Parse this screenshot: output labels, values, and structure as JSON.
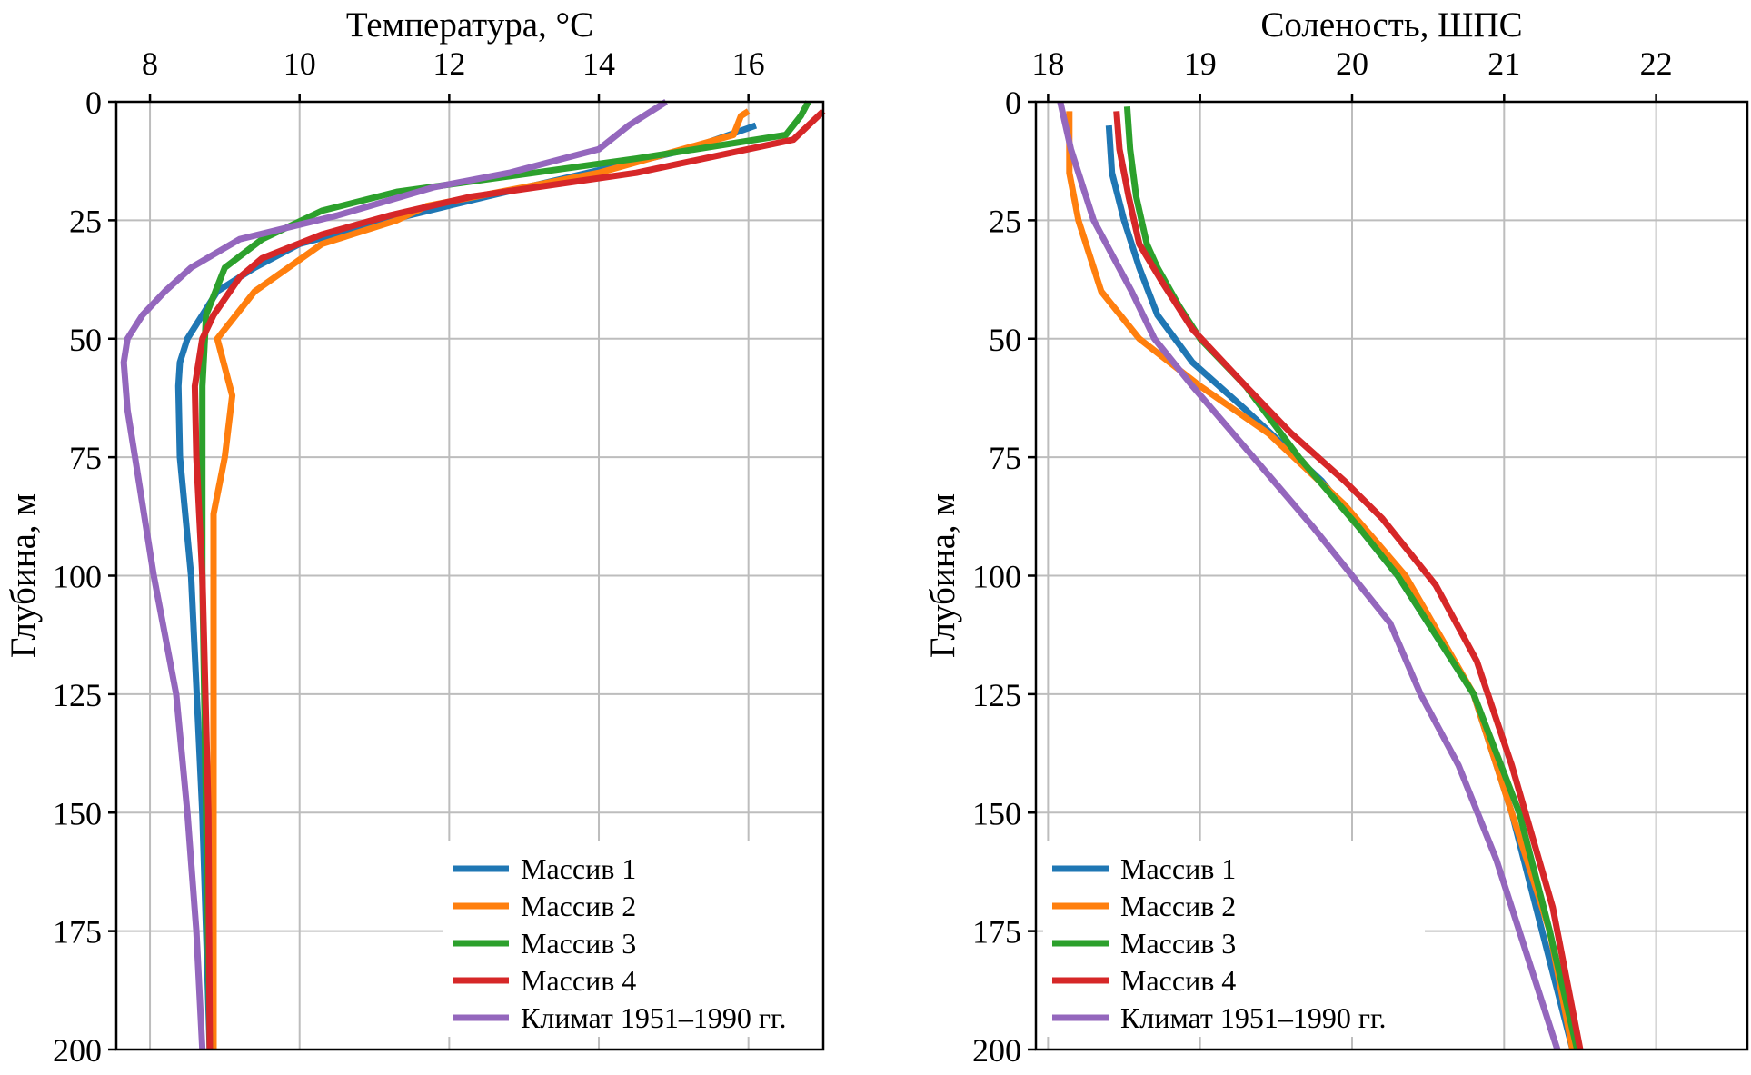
{
  "chart_data": [
    {
      "type": "line",
      "title": "Температура, °C",
      "xlabel": "Температура, °C",
      "ylabel": "Глубина, м",
      "xlim": [
        7.55,
        17.0
      ],
      "ylim": [
        200,
        0
      ],
      "xticks": [
        8,
        10,
        12,
        14,
        16
      ],
      "xtick_labels": [
        "8",
        "10",
        "12",
        "14",
        "16"
      ],
      "yticks": [
        0,
        25,
        50,
        75,
        100,
        125,
        150,
        175,
        200
      ],
      "ytick_labels": [
        "0",
        "25",
        "50",
        "75",
        "100",
        "125",
        "150",
        "175",
        "200"
      ],
      "x_axis_position": "top",
      "grid": true,
      "legend_position": "lower-right",
      "series": [
        {
          "name": "Массив 1",
          "color": "#1f77b4",
          "points": [
            [
              16.1,
              5
            ],
            [
              15.2,
              10
            ],
            [
              12.5,
              20
            ],
            [
              11.2,
              25
            ],
            [
              10.0,
              30
            ],
            [
              9.4,
              35
            ],
            [
              8.9,
              40
            ],
            [
              8.5,
              50
            ],
            [
              8.4,
              55
            ],
            [
              8.38,
              60
            ],
            [
              8.4,
              75
            ],
            [
              8.55,
              100
            ],
            [
              8.7,
              150
            ],
            [
              8.8,
              200
            ]
          ]
        },
        {
          "name": "Массив 2",
          "color": "#ff7f0e",
          "points": [
            [
              16.0,
              2
            ],
            [
              15.9,
              3
            ],
            [
              15.8,
              7
            ],
            [
              14.0,
              15
            ],
            [
              11.7,
              22
            ],
            [
              11.3,
              25
            ],
            [
              10.3,
              30
            ],
            [
              9.4,
              40
            ],
            [
              8.9,
              50
            ],
            [
              9.1,
              62
            ],
            [
              9.0,
              75
            ],
            [
              8.85,
              87
            ],
            [
              8.85,
              100
            ],
            [
              8.85,
              150
            ],
            [
              8.85,
              200
            ]
          ]
        },
        {
          "name": "Массив 3",
          "color": "#2ca02c",
          "points": [
            [
              16.8,
              0
            ],
            [
              16.7,
              3
            ],
            [
              16.5,
              7
            ],
            [
              14.5,
              12
            ],
            [
              11.3,
              19
            ],
            [
              10.3,
              23
            ],
            [
              9.5,
              29
            ],
            [
              9.0,
              35
            ],
            [
              8.75,
              45
            ],
            [
              8.7,
              60
            ],
            [
              8.7,
              100
            ],
            [
              8.8,
              200
            ]
          ]
        },
        {
          "name": "Массив 4",
          "color": "#d62728",
          "points": [
            [
              17.0,
              2
            ],
            [
              16.6,
              8
            ],
            [
              14.5,
              15
            ],
            [
              12.3,
              20
            ],
            [
              11.2,
              24
            ],
            [
              10.3,
              28
            ],
            [
              9.5,
              33
            ],
            [
              9.2,
              37
            ],
            [
              8.85,
              45
            ],
            [
              8.7,
              50
            ],
            [
              8.6,
              60
            ],
            [
              8.62,
              75
            ],
            [
              8.7,
              100
            ],
            [
              8.78,
              150
            ],
            [
              8.8,
              200
            ]
          ]
        },
        {
          "name": "Климат 1951–1990 гг.",
          "color": "#9467bd",
          "points": [
            [
              14.9,
              0
            ],
            [
              14.4,
              5
            ],
            [
              14.0,
              10
            ],
            [
              12.8,
              15
            ],
            [
              11.8,
              18
            ],
            [
              10.5,
              24
            ],
            [
              9.2,
              29
            ],
            [
              8.55,
              35
            ],
            [
              8.2,
              40
            ],
            [
              7.9,
              45
            ],
            [
              7.7,
              50
            ],
            [
              7.65,
              55
            ],
            [
              7.7,
              65
            ],
            [
              7.8,
              75
            ],
            [
              8.05,
              100
            ],
            [
              8.35,
              125
            ],
            [
              8.5,
              150
            ],
            [
              8.62,
              175
            ],
            [
              8.7,
              200
            ]
          ]
        }
      ]
    },
    {
      "type": "line",
      "title": "Соленость, ШПС",
      "xlabel": "Соленость, ШПС",
      "ylabel": "Глубина, м",
      "xlim": [
        17.92,
        22.6
      ],
      "ylim": [
        200,
        0
      ],
      "xticks": [
        18,
        19,
        20,
        21,
        22
      ],
      "xtick_labels": [
        "18",
        "19",
        "20",
        "21",
        "22"
      ],
      "yticks": [
        0,
        25,
        50,
        75,
        100,
        125,
        150,
        175,
        200
      ],
      "ytick_labels": [
        "0",
        "25",
        "50",
        "75",
        "100",
        "125",
        "150",
        "175",
        "200"
      ],
      "x_axis_position": "top",
      "grid": true,
      "legend_position": "lower-left",
      "series": [
        {
          "name": "Массив 1",
          "color": "#1f77b4",
          "points": [
            [
              18.4,
              5
            ],
            [
              18.42,
              15
            ],
            [
              18.5,
              25
            ],
            [
              18.6,
              35
            ],
            [
              18.72,
              45
            ],
            [
              18.95,
              55
            ],
            [
              19.3,
              65
            ],
            [
              19.8,
              80
            ],
            [
              20.3,
              100
            ],
            [
              20.8,
              125
            ],
            [
              21.05,
              150
            ],
            [
              21.25,
              175
            ],
            [
              21.45,
              200
            ]
          ]
        },
        {
          "name": "Массив 2",
          "color": "#ff7f0e",
          "points": [
            [
              18.14,
              2
            ],
            [
              18.14,
              15
            ],
            [
              18.2,
              25
            ],
            [
              18.35,
              40
            ],
            [
              18.6,
              50
            ],
            [
              19.0,
              60
            ],
            [
              19.45,
              70
            ],
            [
              19.95,
              85
            ],
            [
              20.35,
              100
            ],
            [
              20.8,
              125
            ],
            [
              21.05,
              150
            ],
            [
              21.3,
              175
            ],
            [
              21.45,
              200
            ]
          ]
        },
        {
          "name": "Массив 3",
          "color": "#2ca02c",
          "points": [
            [
              18.52,
              1
            ],
            [
              18.54,
              10
            ],
            [
              18.58,
              20
            ],
            [
              18.65,
              30
            ],
            [
              18.72,
              35
            ],
            [
              18.86,
              43
            ],
            [
              19.0,
              50
            ],
            [
              19.3,
              60
            ],
            [
              19.65,
              75
            ],
            [
              20.05,
              90
            ],
            [
              20.3,
              100
            ],
            [
              20.8,
              125
            ],
            [
              21.1,
              150
            ],
            [
              21.3,
              175
            ],
            [
              21.48,
              200
            ]
          ]
        },
        {
          "name": "Массив 4",
          "color": "#d62728",
          "points": [
            [
              18.45,
              2
            ],
            [
              18.47,
              10
            ],
            [
              18.53,
              20
            ],
            [
              18.6,
              30
            ],
            [
              18.75,
              38
            ],
            [
              18.95,
              48
            ],
            [
              19.3,
              60
            ],
            [
              19.6,
              70
            ],
            [
              19.95,
              80
            ],
            [
              20.2,
              88
            ],
            [
              20.55,
              102
            ],
            [
              20.82,
              118
            ],
            [
              21.05,
              140
            ],
            [
              21.32,
              170
            ],
            [
              21.5,
              200
            ]
          ]
        },
        {
          "name": "Климат 1951–1990 гг.",
          "color": "#9467bd",
          "points": [
            [
              18.08,
              0
            ],
            [
              18.15,
              10
            ],
            [
              18.3,
              25
            ],
            [
              18.55,
              40
            ],
            [
              18.7,
              50
            ],
            [
              18.95,
              60
            ],
            [
              19.35,
              75
            ],
            [
              19.75,
              90
            ],
            [
              20.0,
              100
            ],
            [
              20.25,
              110
            ],
            [
              20.45,
              125
            ],
            [
              20.7,
              140
            ],
            [
              20.95,
              160
            ],
            [
              21.15,
              180
            ],
            [
              21.35,
              200
            ]
          ]
        }
      ]
    }
  ]
}
